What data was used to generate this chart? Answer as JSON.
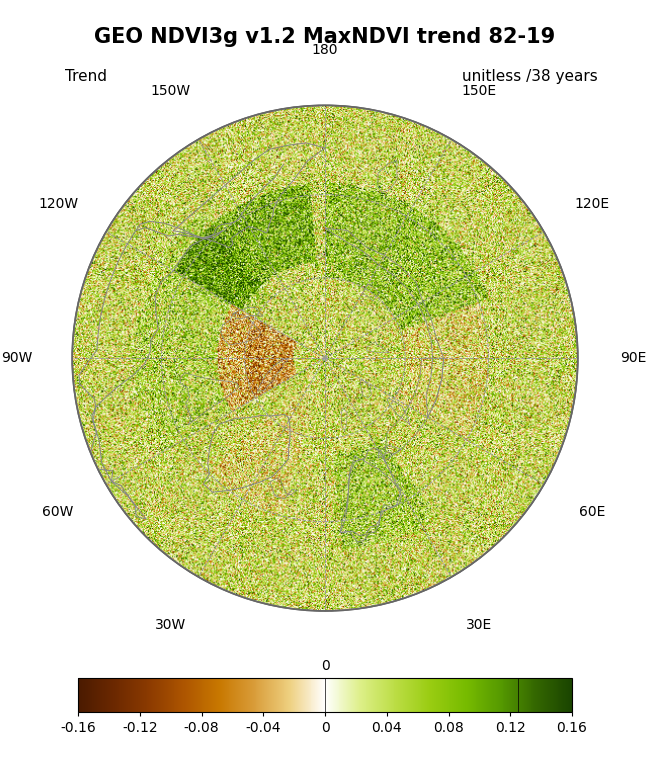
{
  "title": "GEO NDVI3g v1.2 MaxNDVI trend 82-19",
  "label_left": "Trend",
  "label_right": "unitless /38 years",
  "colorbar_ticks": [
    -0.16,
    -0.12,
    -0.08,
    -0.04,
    0,
    0.04,
    0.08,
    0.12,
    0.16
  ],
  "colorbar_tick_labels": [
    "-0.16",
    "-0.12",
    "-0.08",
    "-0.04",
    "0",
    "0.04",
    "0.08",
    "0.12",
    "0.16"
  ],
  "cmap_neg_colors": [
    "#4A1A00",
    "#6B2800",
    "#8B3A00",
    "#AD5500",
    "#C87800",
    "#D99D3A",
    "#EED080",
    "#FFFFFF"
  ],
  "cmap_pos_colors": [
    "#FFFFFF",
    "#DDEF88",
    "#BBDD44",
    "#99CC11",
    "#77BB00",
    "#559900",
    "#336600",
    "#1A4400"
  ],
  "background_color": "#FFFFFF",
  "ocean_color": "#FFFFFF",
  "land_color": "#F2F2F2",
  "coast_color": "#888888",
  "grid_color": "#999999",
  "title_fontsize": 15,
  "label_fontsize": 11,
  "tick_fontsize": 10,
  "fig_width": 6.5,
  "fig_height": 7.62,
  "min_lat": 45,
  "lon_ticks": [
    0,
    30,
    60,
    90,
    120,
    150,
    180,
    -150,
    -120,
    -90,
    -60,
    -30
  ],
  "lon_tick_labels": [
    "0",
    "30E",
    "60E",
    "90E",
    "120E",
    "150E",
    "180",
    "150W",
    "120W",
    "90W",
    "60W",
    "30W"
  ],
  "lat_circles": [
    45,
    60,
    75
  ]
}
